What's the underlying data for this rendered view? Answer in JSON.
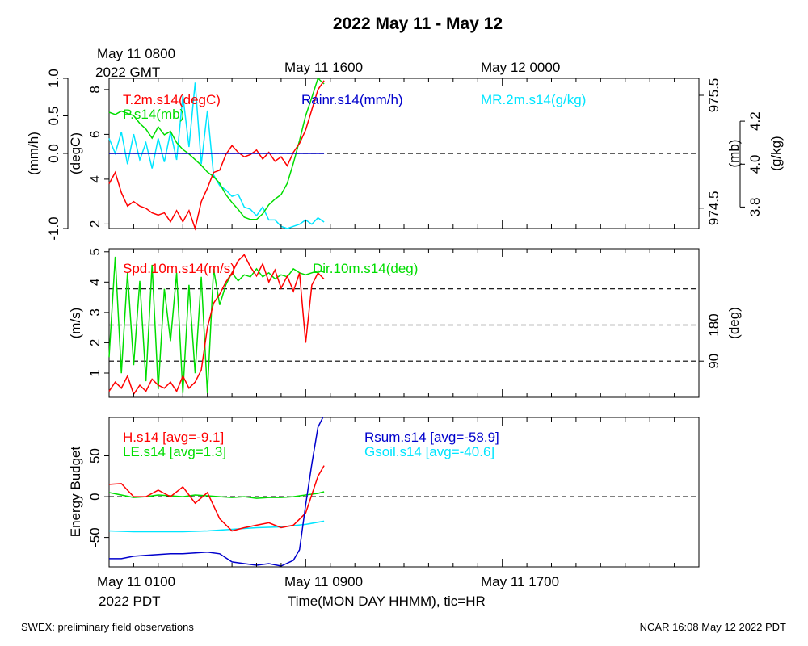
{
  "title": "2022 May 11 - May 12",
  "top_axis": {
    "first_tick": [
      "May 11 0800",
      "2022 GMT"
    ],
    "tick_labels": [
      "May 11 1600",
      "May 12 0000"
    ]
  },
  "bottom_axis": {
    "first_tick": [
      "May 11 0100",
      "2022 PDT"
    ],
    "tick_labels": [
      "May 11 0900",
      "May 11 1700"
    ],
    "label": "Time(MON DAY HHMM), tic=HR"
  },
  "footer": {
    "left": "SWEX: preliminary field observations",
    "right": "NCAR 16:08 May 12 2022 PDT"
  },
  "colors": {
    "red": "#ff0000",
    "green": "#00dd00",
    "blue": "#0000cc",
    "cyan": "#00e5ff",
    "black": "#000000"
  },
  "chart_data": [
    {
      "type": "line",
      "panel": "top",
      "x_unit": "hours since May 11 0100 PDT",
      "xlim": [
        0,
        24
      ],
      "axes": {
        "rain": {
          "label": "(mm/h)",
          "lim": [
            -1.0,
            1.0
          ],
          "ticks": [
            "-1.0",
            "0.0",
            "0.5",
            "1.0"
          ],
          "tick_values": [
            -1.0,
            0.0,
            0.5,
            1.0
          ]
        },
        "temp": {
          "label": "(degC)",
          "lim": [
            1.8,
            8.5
          ],
          "ticks": [
            "2",
            "4",
            "6",
            "8"
          ],
          "tick_values": [
            2,
            4,
            6,
            8
          ]
        },
        "pressure": {
          "label": "(mb)",
          "lim": [
            974.32,
            975.65
          ],
          "ticks": [
            "974.5",
            "975.5"
          ],
          "tick_values": [
            974.5,
            975.5
          ]
        },
        "mr": {
          "label": "(g/kg)",
          "lim": [
            3.7,
            4.4
          ],
          "ticks": [
            "3.8",
            "4.0",
            "4.2"
          ],
          "tick_values": [
            3.8,
            4.0,
            4.2
          ]
        }
      },
      "reference_lines": [
        {
          "axis": "rain",
          "value": 0.0
        }
      ],
      "series": [
        {
          "name": "T.2m.s14(degC)",
          "color": "#ff0000",
          "axis": "temp",
          "x": [
            0,
            0.25,
            0.5,
            0.75,
            1,
            1.25,
            1.5,
            1.75,
            2,
            2.25,
            2.5,
            2.75,
            3,
            3.25,
            3.5,
            3.75,
            4,
            4.25,
            4.5,
            4.75,
            5,
            5.25,
            5.5,
            5.75,
            6,
            6.25,
            6.5,
            6.75,
            7,
            7.25,
            7.5,
            7.75,
            8,
            8.25,
            8.5,
            8.75
          ],
          "values": [
            3.8,
            4.3,
            3.4,
            2.8,
            3.0,
            2.8,
            2.7,
            2.5,
            2.4,
            2.5,
            2.1,
            2.6,
            2.1,
            2.6,
            1.8,
            3.0,
            3.6,
            4.3,
            4.4,
            5.1,
            5.5,
            5.2,
            5.0,
            5.1,
            5.3,
            4.9,
            5.2,
            4.8,
            5.0,
            4.6,
            5.2,
            5.6,
            6.2,
            7.1,
            8.0,
            8.4
          ]
        },
        {
          "name": "P.s14(mb)",
          "color": "#00dd00",
          "axis": "pressure",
          "x": [
            0,
            0.25,
            0.5,
            0.75,
            1,
            1.25,
            1.5,
            1.75,
            2,
            2.25,
            2.5,
            2.75,
            3,
            3.25,
            3.5,
            3.75,
            4,
            4.25,
            4.5,
            4.75,
            5,
            5.25,
            5.5,
            5.75,
            6,
            6.25,
            6.5,
            6.75,
            7,
            7.25,
            7.5,
            7.75,
            8,
            8.25,
            8.5,
            8.75
          ],
          "values": [
            975.35,
            975.33,
            975.36,
            975.34,
            975.32,
            975.25,
            975.2,
            975.12,
            975.22,
            975.15,
            975.18,
            975.08,
            975.02,
            974.98,
            974.93,
            974.88,
            974.82,
            974.78,
            974.72,
            974.62,
            974.55,
            974.49,
            974.42,
            974.4,
            974.4,
            974.45,
            974.53,
            974.58,
            974.62,
            974.72,
            974.9,
            975.1,
            975.32,
            975.48,
            975.65,
            975.6
          ]
        },
        {
          "name": "Rainr.s14(mm/h)",
          "color": "#0000cc",
          "axis": "rain",
          "x": [
            0,
            8.75
          ],
          "values": [
            0.0,
            0.0
          ]
        },
        {
          "name": "MR.2m.s14(g/kg)",
          "color": "#00e5ff",
          "axis": "mr",
          "x": [
            0,
            0.25,
            0.5,
            0.75,
            1,
            1.25,
            1.5,
            1.75,
            2,
            2.25,
            2.5,
            2.75,
            3,
            3.25,
            3.5,
            3.75,
            4,
            4.25,
            4.5,
            4.75,
            5,
            5.25,
            5.5,
            5.75,
            6,
            6.25,
            6.5,
            6.75,
            7,
            7.25,
            7.5,
            7.75,
            8,
            8.25,
            8.5,
            8.75
          ],
          "values": [
            4.12,
            4.05,
            4.15,
            4.0,
            4.14,
            4.02,
            4.1,
            3.98,
            4.12,
            4.01,
            4.15,
            4.02,
            4.32,
            4.08,
            4.38,
            4.0,
            4.25,
            3.95,
            3.9,
            3.88,
            3.85,
            3.86,
            3.8,
            3.79,
            3.76,
            3.8,
            3.74,
            3.74,
            3.71,
            3.7,
            3.71,
            3.72,
            3.74,
            3.72,
            3.75,
            3.73
          ]
        }
      ]
    },
    {
      "type": "line",
      "panel": "middle",
      "x_unit": "hours since May 11 0100 PDT",
      "xlim": [
        0,
        24
      ],
      "axes": {
        "spd": {
          "label": "(m/s)",
          "lim": [
            0.2,
            5.1
          ],
          "ticks": [
            "1",
            "2",
            "3",
            "4",
            "5"
          ],
          "tick_values": [
            1,
            2,
            3,
            4,
            5
          ]
        },
        "dir": {
          "label": "(deg)",
          "lim": [
            0,
            370
          ],
          "ticks": [
            "90",
            "180"
          ],
          "tick_values": [
            90,
            180
          ]
        }
      },
      "reference_lines": [
        {
          "axis": "dir",
          "value": 90
        },
        {
          "axis": "dir",
          "value": 180
        },
        {
          "axis": "dir",
          "value": 270
        }
      ],
      "series": [
        {
          "name": "Spd.10m.s14(m/s)",
          "color": "#ff0000",
          "axis": "spd",
          "x": [
            0,
            0.25,
            0.5,
            0.75,
            1,
            1.25,
            1.5,
            1.75,
            2,
            2.25,
            2.5,
            2.75,
            3,
            3.25,
            3.5,
            3.75,
            4,
            4.25,
            4.5,
            4.75,
            5,
            5.25,
            5.5,
            5.75,
            6,
            6.25,
            6.5,
            6.75,
            7,
            7.25,
            7.5,
            7.75,
            8,
            8.25,
            8.5,
            8.75
          ],
          "values": [
            0.4,
            0.7,
            0.5,
            0.9,
            0.3,
            0.6,
            0.4,
            0.8,
            0.6,
            0.5,
            0.7,
            0.4,
            0.9,
            0.5,
            0.7,
            1.1,
            2.5,
            3.3,
            3.6,
            4.0,
            4.3,
            4.7,
            4.9,
            4.5,
            4.2,
            4.6,
            4.0,
            4.4,
            3.8,
            4.2,
            3.7,
            4.3,
            2.0,
            3.9,
            4.3,
            4.1
          ]
        },
        {
          "name": "Dir.10m.s14(deg)",
          "color": "#00dd00",
          "axis": "dir",
          "x": [
            0,
            0.25,
            0.5,
            0.75,
            1,
            1.25,
            1.5,
            1.75,
            2,
            2.25,
            2.5,
            2.75,
            3,
            3.25,
            3.5,
            3.75,
            4,
            4.25,
            4.5,
            4.75,
            5,
            5.25,
            5.5,
            5.75,
            6,
            6.25,
            6.5,
            6.75,
            7,
            7.25,
            7.5,
            7.75,
            8,
            8.25,
            8.5,
            8.75
          ],
          "values": [
            100,
            350,
            60,
            310,
            80,
            290,
            40,
            330,
            20,
            270,
            140,
            310,
            10,
            280,
            60,
            300,
            10,
            320,
            230,
            280,
            310,
            290,
            305,
            300,
            320,
            300,
            310,
            295,
            305,
            300,
            320,
            310,
            305,
            310,
            315,
            312
          ]
        }
      ]
    },
    {
      "type": "line",
      "panel": "bottom",
      "x_unit": "hours since May 11 0100 PDT",
      "xlim": [
        0,
        24
      ],
      "ylabel": "Energy Budget",
      "ylim": [
        -86,
        97
      ],
      "yticks": [
        "-50",
        "0",
        "50"
      ],
      "ytick_values": [
        -50,
        0,
        50
      ],
      "reference_lines": [
        {
          "value": 0
        }
      ],
      "series": [
        {
          "name": "H.s14 [avg=-9.1]",
          "color": "#ff0000",
          "x": [
            0,
            0.5,
            1,
            1.5,
            2,
            2.5,
            3,
            3.5,
            4,
            4.5,
            5,
            5.5,
            6,
            6.5,
            7,
            7.5,
            8,
            8.5,
            8.75
          ],
          "values": [
            15,
            16,
            0,
            0,
            8,
            0,
            12,
            -8,
            5,
            -27,
            -42,
            -38,
            -35,
            -32,
            -38,
            -35,
            -20,
            25,
            38
          ]
        },
        {
          "name": "LE.s14 [avg=1.3]",
          "color": "#00dd00",
          "x": [
            0,
            0.5,
            1,
            1.5,
            2,
            2.5,
            3,
            3.5,
            4,
            4.5,
            5,
            5.5,
            6,
            6.5,
            7,
            7.5,
            8,
            8.5,
            8.75
          ],
          "values": [
            5,
            2,
            -1,
            0,
            2,
            1,
            0,
            2,
            1,
            0,
            -1,
            0,
            -2,
            -1,
            -1,
            0,
            2,
            4,
            6
          ]
        },
        {
          "name": "Rsum.s14 [avg=-58.9]",
          "color": "#0000cc",
          "x": [
            0,
            0.5,
            1,
            1.5,
            2,
            2.5,
            3,
            3.5,
            4,
            4.5,
            5,
            5.5,
            6,
            6.5,
            7,
            7.5,
            7.75,
            8,
            8.25,
            8.5,
            8.75
          ],
          "values": [
            -76,
            -76,
            -73,
            -72,
            -71,
            -70,
            -70,
            -69,
            -68,
            -70,
            -80,
            -82,
            -84,
            -82,
            -85,
            -78,
            -65,
            -10,
            40,
            85,
            100
          ]
        },
        {
          "name": "Gsoil.s14 [avg=-40.6]",
          "color": "#00e5ff",
          "x": [
            0,
            1,
            2,
            3,
            4,
            5,
            6,
            7,
            8,
            8.75
          ],
          "values": [
            -42,
            -43,
            -43,
            -43,
            -42,
            -40,
            -38,
            -37,
            -34,
            -30
          ]
        }
      ]
    }
  ]
}
